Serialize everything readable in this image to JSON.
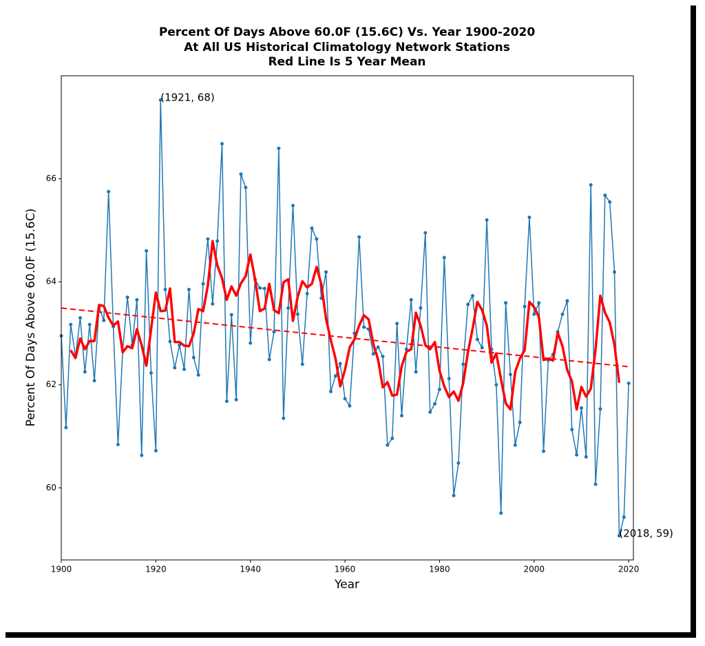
{
  "chart_data": {
    "type": "line",
    "title": [
      "Percent Of Days Above 60.0F (15.6C) Vs. Year 1900-2020",
      "At All US Historical Climatology Network Stations",
      "Red Line Is 5 Year Mean"
    ],
    "xlabel": "Year",
    "ylabel": "Percent Of Days Above 60.0F (15.6C)",
    "xlim": [
      1900,
      2021
    ],
    "ylim": [
      58.6,
      68.0
    ],
    "xticks": [
      1900,
      1920,
      1940,
      1960,
      1980,
      2000,
      2020
    ],
    "yticks": [
      60,
      62,
      64,
      66
    ],
    "x": [
      1900,
      1901,
      1902,
      1903,
      1904,
      1905,
      1906,
      1907,
      1908,
      1909,
      1910,
      1911,
      1912,
      1913,
      1914,
      1915,
      1916,
      1917,
      1918,
      1919,
      1920,
      1921,
      1922,
      1923,
      1924,
      1925,
      1926,
      1927,
      1928,
      1929,
      1930,
      1931,
      1932,
      1933,
      1934,
      1935,
      1936,
      1937,
      1938,
      1939,
      1940,
      1941,
      1942,
      1943,
      1944,
      1945,
      1946,
      1947,
      1948,
      1949,
      1950,
      1951,
      1952,
      1953,
      1954,
      1955,
      1956,
      1957,
      1958,
      1959,
      1960,
      1961,
      1962,
      1963,
      1964,
      1965,
      1966,
      1967,
      1968,
      1969,
      1970,
      1971,
      1972,
      1973,
      1974,
      1975,
      1976,
      1977,
      1978,
      1979,
      1980,
      1981,
      1982,
      1983,
      1984,
      1985,
      1986,
      1987,
      1988,
      1989,
      1990,
      1991,
      1992,
      1993,
      1994,
      1995,
      1996,
      1997,
      1998,
      1999,
      2000,
      2001,
      2002,
      2003,
      2004,
      2005,
      2006,
      2007,
      2008,
      2009,
      2010,
      2011,
      2012,
      2013,
      2014,
      2015,
      2016,
      2017,
      2018,
      2019,
      2020
    ],
    "series": [
      {
        "color": "#1f77b4",
        "width": 1.5,
        "dash": false,
        "markers": true,
        "values": [
          62.95,
          61.17,
          63.17,
          62.55,
          63.3,
          62.25,
          63.17,
          62.08,
          63.5,
          63.25,
          65.75,
          63.13,
          60.84,
          62.67,
          63.7,
          62.77,
          63.65,
          60.63,
          64.6,
          62.23,
          60.72,
          67.53,
          63.85,
          62.84,
          62.33,
          62.77,
          62.3,
          63.85,
          62.53,
          62.19,
          63.96,
          64.83,
          63.57,
          64.79,
          66.68,
          61.68,
          63.36,
          61.71,
          66.09,
          65.83,
          62.81,
          64.04,
          63.88,
          63.87,
          62.49,
          63.03,
          66.59,
          61.35,
          63.49,
          65.48,
          63.37,
          62.4,
          63.77,
          65.04,
          64.83,
          63.68,
          64.19,
          61.87,
          62.17,
          62.41,
          61.73,
          61.59,
          63.0,
          64.87,
          63.12,
          63.08,
          62.6,
          62.73,
          62.55,
          60.83,
          60.96,
          63.19,
          61.4,
          62.69,
          63.65,
          62.25,
          63.49,
          64.95,
          61.47,
          61.63,
          61.91,
          64.47,
          62.12,
          59.85,
          60.48,
          62.4,
          63.56,
          63.73,
          62.88,
          62.72,
          65.2,
          62.69,
          62.0,
          59.51,
          63.59,
          62.2,
          60.83,
          61.27,
          63.52,
          65.25,
          63.37,
          63.59,
          60.71,
          62.48,
          62.59,
          63.03,
          63.37,
          63.63,
          61.13,
          60.64,
          61.55,
          60.6,
          65.88,
          60.07,
          61.53,
          65.68,
          65.55,
          64.19,
          59.07,
          59.43,
          62.03
        ]
      },
      {
        "color": "#ff0000",
        "width": 3.5,
        "dash": false,
        "markers": false,
        "values": [
          null,
          null,
          62.67,
          62.52,
          62.9,
          62.69,
          62.85,
          62.85,
          63.55,
          63.53,
          63.3,
          63.15,
          63.23,
          62.63,
          62.75,
          62.71,
          63.08,
          62.77,
          62.37,
          63.08,
          63.79,
          63.43,
          63.44,
          63.87,
          62.83,
          62.83,
          62.76,
          62.75,
          62.99,
          63.47,
          63.43,
          63.93,
          64.79,
          64.32,
          64.07,
          63.65,
          63.91,
          63.73,
          63.97,
          64.11,
          64.53,
          64.04,
          63.43,
          63.48,
          63.96,
          63.45,
          63.39,
          63.99,
          64.05,
          63.24,
          63.71,
          64.01,
          63.89,
          63.96,
          64.29,
          63.95,
          63.28,
          62.87,
          62.51,
          61.97,
          62.29,
          62.73,
          62.88,
          63.15,
          63.35,
          63.27,
          62.79,
          62.49,
          61.95,
          62.05,
          61.79,
          61.81,
          62.36,
          62.64,
          62.69,
          63.4,
          63.15,
          62.77,
          62.69,
          62.83,
          62.27,
          61.97,
          61.76,
          61.87,
          61.69,
          62.03,
          62.63,
          63.09,
          63.61,
          63.45,
          63.15,
          62.43,
          62.61,
          62.11,
          61.64,
          61.52,
          62.25,
          62.51,
          62.67,
          63.61,
          63.51,
          63.32,
          62.48,
          62.51,
          62.47,
          63.01,
          62.75,
          62.29,
          62.07,
          61.52,
          61.96,
          61.77,
          61.93,
          62.69,
          63.73,
          63.4,
          63.21,
          62.77,
          62.04,
          null,
          null
        ]
      },
      {
        "color": "#ff0000",
        "width": 2,
        "dash": true,
        "markers": false,
        "x": [
          1900,
          2020
        ],
        "values": [
          63.49,
          62.35
        ]
      }
    ],
    "annotations": [
      {
        "text": "(1921, 68)",
        "x": 1921,
        "y": 67.53
      },
      {
        "text": "(2018, 59)",
        "x": 2018,
        "y": 59.07
      }
    ]
  }
}
